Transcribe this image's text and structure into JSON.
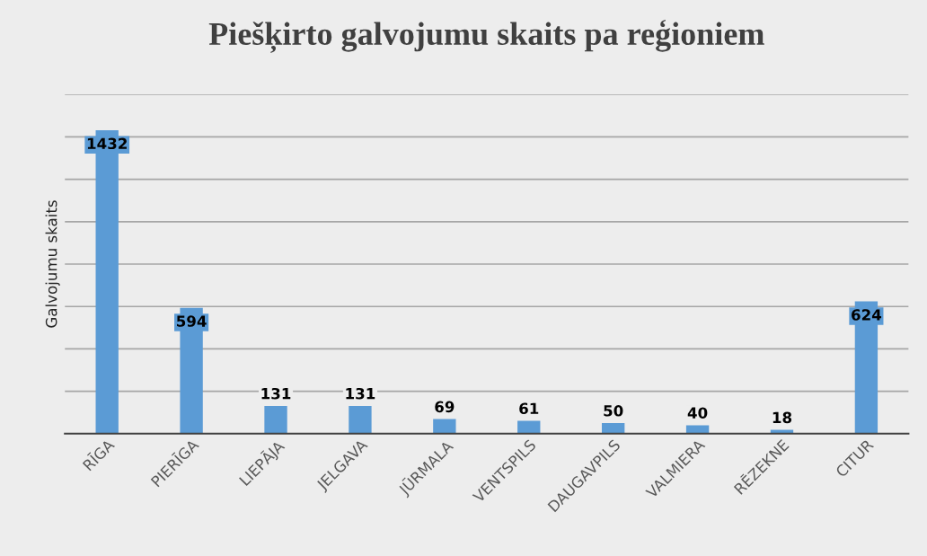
{
  "chart_data": {
    "type": "bar",
    "title": "Piešķirto galvojumu skaits pa reģioniem",
    "ylabel": "Galvojumu skaits",
    "categories": [
      "RĪGA",
      "PIERĪGA",
      "LIEPĀJA",
      "JELGAVA",
      "JŪRMALA",
      "VENTSPILS",
      "DAUGAVPILS",
      "VALMIERA",
      "RĒZEKNE",
      "CITUR"
    ],
    "values": [
      1432,
      594,
      131,
      131,
      69,
      61,
      50,
      40,
      18,
      624
    ],
    "color": "#5b9bd5",
    "ylim": [
      0,
      1600
    ],
    "yticks": [
      {
        "value": 0,
        "label": null
      },
      {
        "value": 200,
        "label": null
      },
      {
        "value": 400,
        "label": null
      },
      {
        "value": 600,
        "label": null
      },
      {
        "value": 800,
        "label": null
      },
      {
        "value": 1000,
        "label": null
      },
      {
        "value": 1200,
        "label": null
      },
      {
        "value": 1400,
        "label": null
      },
      {
        "value": 1600,
        "label": null
      }
    ],
    "tick_labels": "x",
    "grid": "y",
    "data_labels": true,
    "legend": false
  }
}
